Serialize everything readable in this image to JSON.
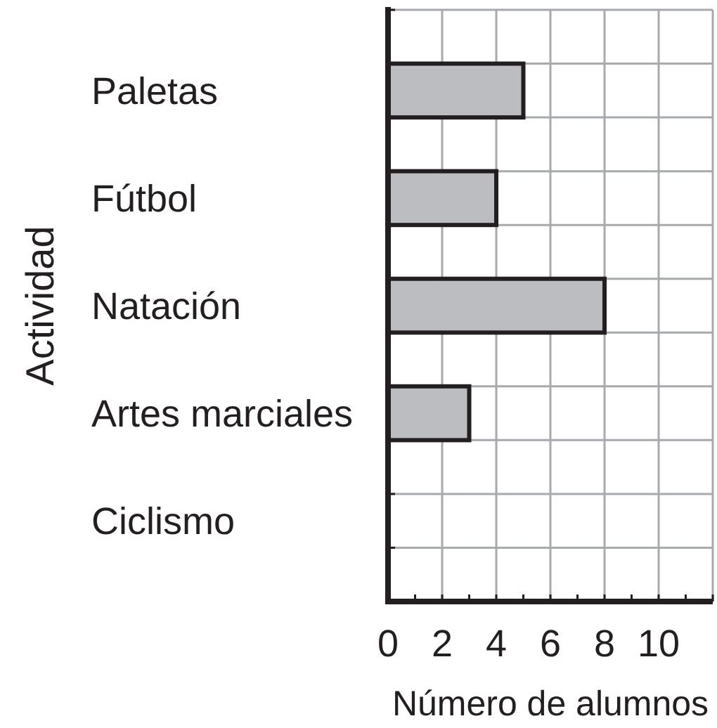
{
  "chart_data": {
    "type": "bar",
    "orientation": "horizontal",
    "xlabel": "Número de alumnos",
    "ylabel": "Actividad",
    "categories": [
      "Paletas",
      "Fútbol",
      "Natación",
      "Artes marciales",
      "Ciclismo"
    ],
    "values": [
      5,
      4,
      8,
      3,
      0
    ],
    "color": "#bcbdc0",
    "xlim": [
      0,
      12
    ],
    "xticks": [
      0,
      {
        "value": 1,
        "label": null
      },
      2,
      {
        "value": 3,
        "label": null
      },
      4,
      {
        "value": 5,
        "label": null
      },
      6,
      {
        "value": 7,
        "label": null
      },
      8,
      {
        "value": 9,
        "label": null
      },
      10,
      {
        "value": 11,
        "label": null
      },
      {
        "value": 12,
        "label": null
      }
    ],
    "grid": true
  }
}
